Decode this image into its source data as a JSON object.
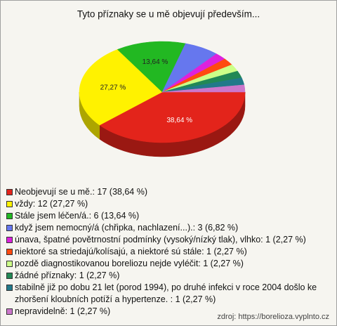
{
  "chart_data": {
    "type": "pie",
    "title": "Tyto příznaky se u mě objevují především...",
    "categories": [
      "Neobjevují se u mě.: 17 (38,64 %)",
      "vždy: 12 (27,27 %)",
      "Stále jsem léčen/á.: 6 (13,64 %)",
      "když jsem nemocný/á (chřipka, nachlazení...).: 3 (6,82 %)",
      "únava, špatné povětrnostní podmínky (vysoký/nízký tlak), vlhko: 1 (2,27 %)",
      "niektoré sa striedajú/kolísajú, a niektoré sú stále: 1 (2,27 %)",
      "pozdě diagnostikovanou boreliozu nejde vyléčit: 1 (2,27 %)",
      "žádné příznaky: 1 (2,27 %)",
      "stabilně již po dobu 21 let (porod 1994), po druhé infekci v roce 2004 došlo ke zhoršení kloubních potíží a hypertenze.    : 1 (2,27 %)",
      "nepravidelně: 1 (2,27 %)"
    ],
    "values": [
      38.64,
      27.27,
      13.64,
      6.82,
      2.27,
      2.27,
      2.27,
      2.27,
      2.27,
      2.27
    ],
    "value_labels": [
      "38,64 %",
      "27,27 %",
      "13,64 %",
      null,
      null,
      null,
      null,
      null,
      null,
      null
    ],
    "colors": [
      "#e3241b",
      "#fff200",
      "#22b822",
      "#6677ee",
      "#dd22dd",
      "#ff4a10",
      "#ccff88",
      "#228855",
      "#22798a",
      "#cc77cc"
    ],
    "source": "zdroj: https://borelioza.vyplnto.cz"
  }
}
